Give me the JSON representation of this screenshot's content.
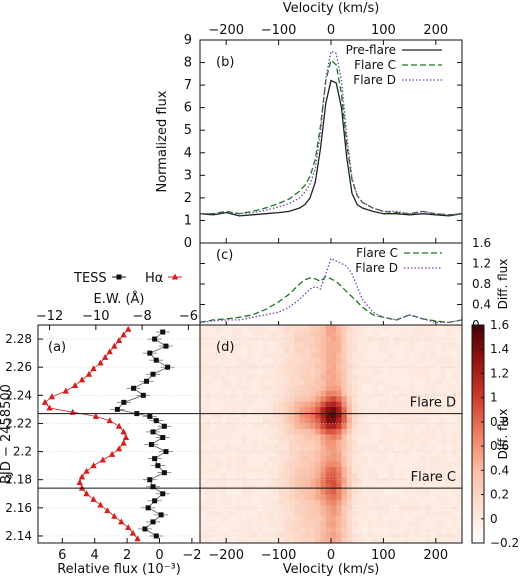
{
  "chart_data": [
    {
      "panel": "b",
      "panel_label": "(b)",
      "type": "line",
      "title": "",
      "xlabel": "Velocity (km/s)",
      "ylabel": "Normalized flux",
      "xlim": [
        -250,
        250
      ],
      "ylim": [
        0,
        9
      ],
      "xticks": [
        -200,
        -100,
        0,
        100,
        200
      ],
      "yticks": [
        0,
        1,
        2,
        3,
        4,
        5,
        6,
        7,
        8,
        9
      ],
      "legend_position": "top-right",
      "x": [
        -250,
        -225,
        -200,
        -175,
        -150,
        -125,
        -100,
        -80,
        -60,
        -50,
        -40,
        -30,
        -20,
        -10,
        0,
        10,
        20,
        30,
        40,
        50,
        60,
        80,
        100,
        125,
        150,
        175,
        200,
        225,
        250
      ],
      "series": [
        {
          "name": "Pre-flare",
          "color": "#222222",
          "style": "solid",
          "values": [
            1.3,
            1.25,
            1.35,
            1.2,
            1.25,
            1.3,
            1.35,
            1.4,
            1.55,
            1.7,
            2.0,
            2.7,
            4.2,
            6.2,
            7.2,
            7.1,
            6.0,
            3.8,
            2.2,
            1.7,
            1.55,
            1.4,
            1.3,
            1.3,
            1.25,
            1.3,
            1.25,
            1.2,
            1.3
          ]
        },
        {
          "name": "Flare C",
          "color": "#1a7a1a",
          "style": "dashed",
          "values": [
            1.3,
            1.3,
            1.4,
            1.3,
            1.4,
            1.55,
            1.75,
            1.95,
            2.3,
            2.55,
            2.95,
            3.7,
            5.2,
            7.2,
            8.1,
            7.9,
            6.6,
            4.4,
            2.8,
            2.1,
            1.8,
            1.55,
            1.4,
            1.35,
            1.3,
            1.4,
            1.3,
            1.25,
            1.3
          ]
        },
        {
          "name": "Flare D",
          "color": "#7a3fb0",
          "style": "dotted",
          "values": [
            1.3,
            1.3,
            1.35,
            1.3,
            1.35,
            1.45,
            1.6,
            1.75,
            2.0,
            2.25,
            2.6,
            3.3,
            4.9,
            7.3,
            8.5,
            8.4,
            7.2,
            4.8,
            2.9,
            2.1,
            1.8,
            1.55,
            1.4,
            1.4,
            1.3,
            1.4,
            1.3,
            1.25,
            1.3
          ]
        }
      ]
    },
    {
      "panel": "c",
      "panel_label": "(c)",
      "type": "line",
      "ylabel": "Diff. flux",
      "xlim": [
        -250,
        250
      ],
      "ylim": [
        0,
        1.6
      ],
      "yticks": [
        0,
        0.4,
        0.8,
        1.2,
        1.6
      ],
      "yticklabels": [
        "0",
        "0.4",
        "0.8",
        "1.2",
        "1.6"
      ],
      "legend_position": "top-right",
      "x": [
        -250,
        -225,
        -200,
        -175,
        -150,
        -125,
        -100,
        -80,
        -60,
        -50,
        -40,
        -30,
        -20,
        -10,
        0,
        10,
        20,
        30,
        40,
        50,
        60,
        80,
        100,
        125,
        150,
        175,
        200,
        225,
        250
      ],
      "series": [
        {
          "name": "Flare C",
          "color": "#1a7a1a",
          "style": "dashed",
          "values": [
            0.05,
            0.1,
            0.12,
            0.15,
            0.2,
            0.3,
            0.45,
            0.6,
            0.8,
            0.88,
            0.92,
            0.9,
            0.85,
            0.95,
            0.9,
            0.85,
            0.75,
            0.65,
            0.55,
            0.45,
            0.35,
            0.2,
            0.15,
            0.1,
            0.2,
            0.12,
            0.08,
            0.05,
            0.1
          ]
        },
        {
          "name": "Flare D",
          "color": "#7a3fb0",
          "style": "dotted",
          "values": [
            0.05,
            0.08,
            0.1,
            0.1,
            0.15,
            0.2,
            0.25,
            0.35,
            0.5,
            0.6,
            0.7,
            0.75,
            0.7,
            1.0,
            1.3,
            1.25,
            1.2,
            1.15,
            1.0,
            0.75,
            0.5,
            0.25,
            0.15,
            0.1,
            0.2,
            0.12,
            0.05,
            0.05,
            0.1
          ]
        }
      ]
    },
    {
      "panel": "d",
      "panel_label": "(d)",
      "type": "heatmap",
      "xlabel": "Velocity (km/s)",
      "xlim": [
        -250,
        250
      ],
      "ylim": [
        2.135,
        2.29
      ],
      "colorbar_label": "Diff. flux",
      "colorbar_range": [
        -0.2,
        1.6
      ],
      "colorbar_ticks": [
        -0.2,
        0,
        0.2,
        0.4,
        0.6,
        0.8,
        1,
        1.2,
        1.4,
        1.6
      ],
      "markers": [
        {
          "label": "Flare D",
          "y": 2.227
        },
        {
          "label": "Flare C",
          "y": 2.174
        }
      ]
    },
    {
      "panel": "a",
      "panel_label": "(a)",
      "type": "scatter",
      "xlabel": "Relative flux (10⁻³)",
      "ylabel": "BJD − 2458500",
      "xlim_bottom": [
        7.5,
        -2.5
      ],
      "xticks_bottom": [
        6,
        4,
        2,
        0,
        -2
      ],
      "xlabel_top": "E.W. (Å)",
      "xlim_top": [
        -12.5,
        -5.5
      ],
      "xticks_top": [
        -12,
        -10,
        -8,
        -6
      ],
      "ylim": [
        2.135,
        2.29
      ],
      "yticks": [
        2.14,
        2.16,
        2.18,
        2.2,
        2.22,
        2.24,
        2.26,
        2.28
      ],
      "yticklabels": [
        "2.14",
        "2.16",
        "2.18",
        "2.2",
        "2.22",
        "2.24",
        "2.26",
        "2.28"
      ],
      "legend": [
        {
          "name": "TESS",
          "color": "#111111",
          "marker": "square"
        },
        {
          "name": "Hα",
          "color": "#d41f1f",
          "marker": "triangle"
        }
      ],
      "series": [
        {
          "name": "TESS",
          "axis": "bottom",
          "y": [
            2.285,
            2.28,
            2.275,
            2.27,
            2.265,
            2.26,
            2.255,
            2.25,
            2.245,
            2.24,
            2.235,
            2.23,
            2.227,
            2.225,
            2.222,
            2.218,
            2.214,
            2.21,
            2.205,
            2.2,
            2.195,
            2.19,
            2.185,
            2.18,
            2.175,
            2.17,
            2.165,
            2.16,
            2.155,
            2.15,
            2.145,
            2.14
          ],
          "values": [
            -0.2,
            0.3,
            -0.4,
            0.6,
            0.2,
            -0.5,
            0.4,
            0.8,
            1.6,
            1.0,
            2.2,
            2.6,
            1.4,
            0.6,
            0.2,
            -0.3,
            0.4,
            -0.2,
            0.5,
            -0.4,
            0.3,
            0.1,
            -0.3,
            0.6,
            0.4,
            -0.2,
            0.3,
            0.7,
            -0.1,
            0.4,
            0.9,
            0.2
          ]
        },
        {
          "name": "Hα",
          "axis": "top",
          "y": [
            2.287,
            2.283,
            2.279,
            2.275,
            2.271,
            2.267,
            2.263,
            2.259,
            2.255,
            2.251,
            2.247,
            2.243,
            2.239,
            2.235,
            2.231,
            2.228,
            2.225,
            2.222,
            2.218,
            2.214,
            2.21,
            2.206,
            2.202,
            2.198,
            2.194,
            2.19,
            2.186,
            2.182,
            2.178,
            2.174,
            2.17,
            2.166,
            2.162,
            2.158,
            2.154,
            2.15,
            2.146,
            2.142,
            2.138
          ],
          "values": [
            -8.6,
            -8.8,
            -9.0,
            -9.2,
            -9.4,
            -9.6,
            -9.8,
            -10.1,
            -10.3,
            -10.6,
            -10.9,
            -11.3,
            -11.9,
            -12.2,
            -12.0,
            -11.0,
            -10.0,
            -9.4,
            -9.0,
            -8.8,
            -8.7,
            -8.8,
            -9.0,
            -9.3,
            -9.7,
            -10.1,
            -10.4,
            -10.6,
            -10.7,
            -10.6,
            -10.4,
            -10.1,
            -9.8,
            -9.5,
            -9.2,
            -8.9,
            -8.6,
            -8.4,
            -8.2
          ]
        }
      ]
    }
  ]
}
